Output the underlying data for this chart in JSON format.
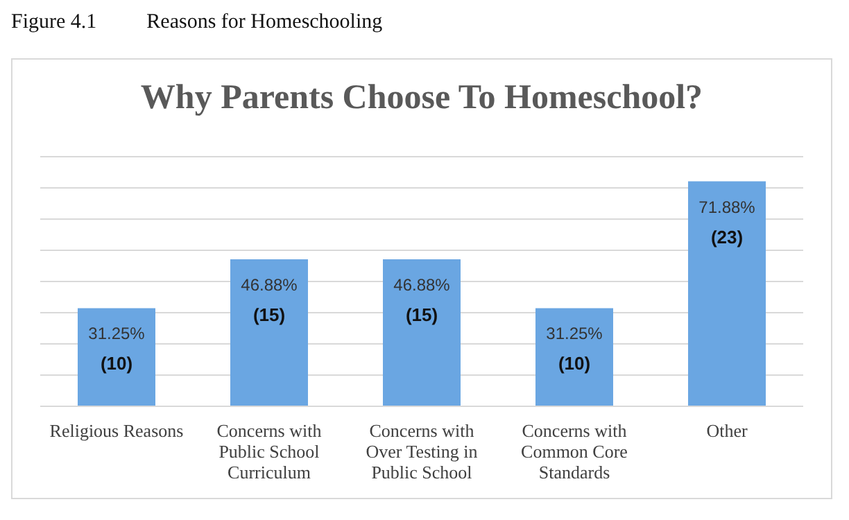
{
  "chart_data": {
    "type": "bar",
    "title": "Why Parents Choose To Homeschool?",
    "annotations": [
      "Figure 4.1",
      "Reasons for Homeschooling"
    ],
    "categories": [
      "Religious Reasons",
      "Concerns with Public School Curriculum",
      "Concerns with Over Testing in Public School",
      "Concerns with Common Core Standards",
      "Other"
    ],
    "values": [
      31.25,
      46.88,
      46.88,
      31.25,
      71.88
    ],
    "value_labels": [
      "31.25% (10)",
      "46.88% (15)",
      "46.88% (15)",
      "31.25% (10)",
      "71.88% (23)"
    ],
    "color": "#6aa6e2",
    "ylim": [
      0,
      80
    ],
    "yticks": [
      {
        "value": 0,
        "label": null
      },
      {
        "value": 10,
        "label": null
      },
      {
        "value": 20,
        "label": null
      },
      {
        "value": 30,
        "label": null
      },
      {
        "value": 40,
        "label": null
      },
      {
        "value": 50,
        "label": null
      },
      {
        "value": 60,
        "label": null
      },
      {
        "value": 70,
        "label": null
      },
      {
        "value": 80,
        "label": null
      }
    ],
    "tick_labels": "x",
    "grid": "y",
    "legend": false
  }
}
